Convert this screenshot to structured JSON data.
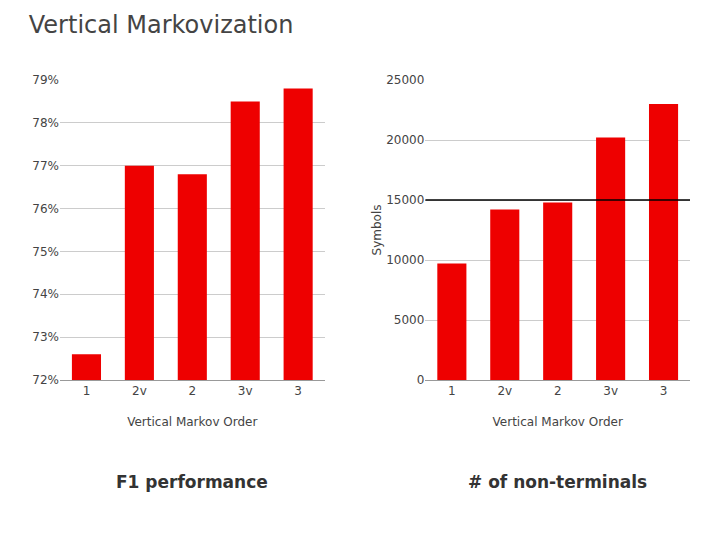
{
  "title": "Vertical Markovization",
  "chart_data": [
    {
      "type": "bar",
      "title": "F1 performance",
      "categories": [
        "1",
        "2v",
        "2",
        "3v",
        "3"
      ],
      "values": [
        0.726,
        0.77,
        0.768,
        0.785,
        0.788
      ],
      "color": "#ee0000",
      "xlabel": "Vertical Markov Order",
      "ylim": [
        0.72,
        0.79
      ],
      "yticks": [
        {
          "value": 0.72,
          "label": "72%"
        },
        {
          "value": 0.73,
          "label": "73%"
        },
        {
          "value": 0.74,
          "label": "74%"
        },
        {
          "value": 0.75,
          "label": "75%"
        },
        {
          "value": 0.76,
          "label": "76%"
        },
        {
          "value": 0.77,
          "label": "77%"
        },
        {
          "value": 0.78,
          "label": "78%"
        },
        {
          "value": 0.79,
          "label": "79%"
        }
      ],
      "grid": true
    },
    {
      "type": "bar",
      "title": "# of non-terminals",
      "categories": [
        "1",
        "2v",
        "2",
        "3v",
        "3"
      ],
      "values": [
        9700,
        14200,
        14800,
        20200,
        23000
      ],
      "color": "#ee0000",
      "xlabel": "Vertical Markov Order",
      "ylabel": "Symbols",
      "ylim": [
        0,
        25000
      ],
      "yticks": [
        0,
        5000,
        10000,
        15000,
        20000,
        25000
      ],
      "hline": 15000,
      "grid": true
    }
  ]
}
